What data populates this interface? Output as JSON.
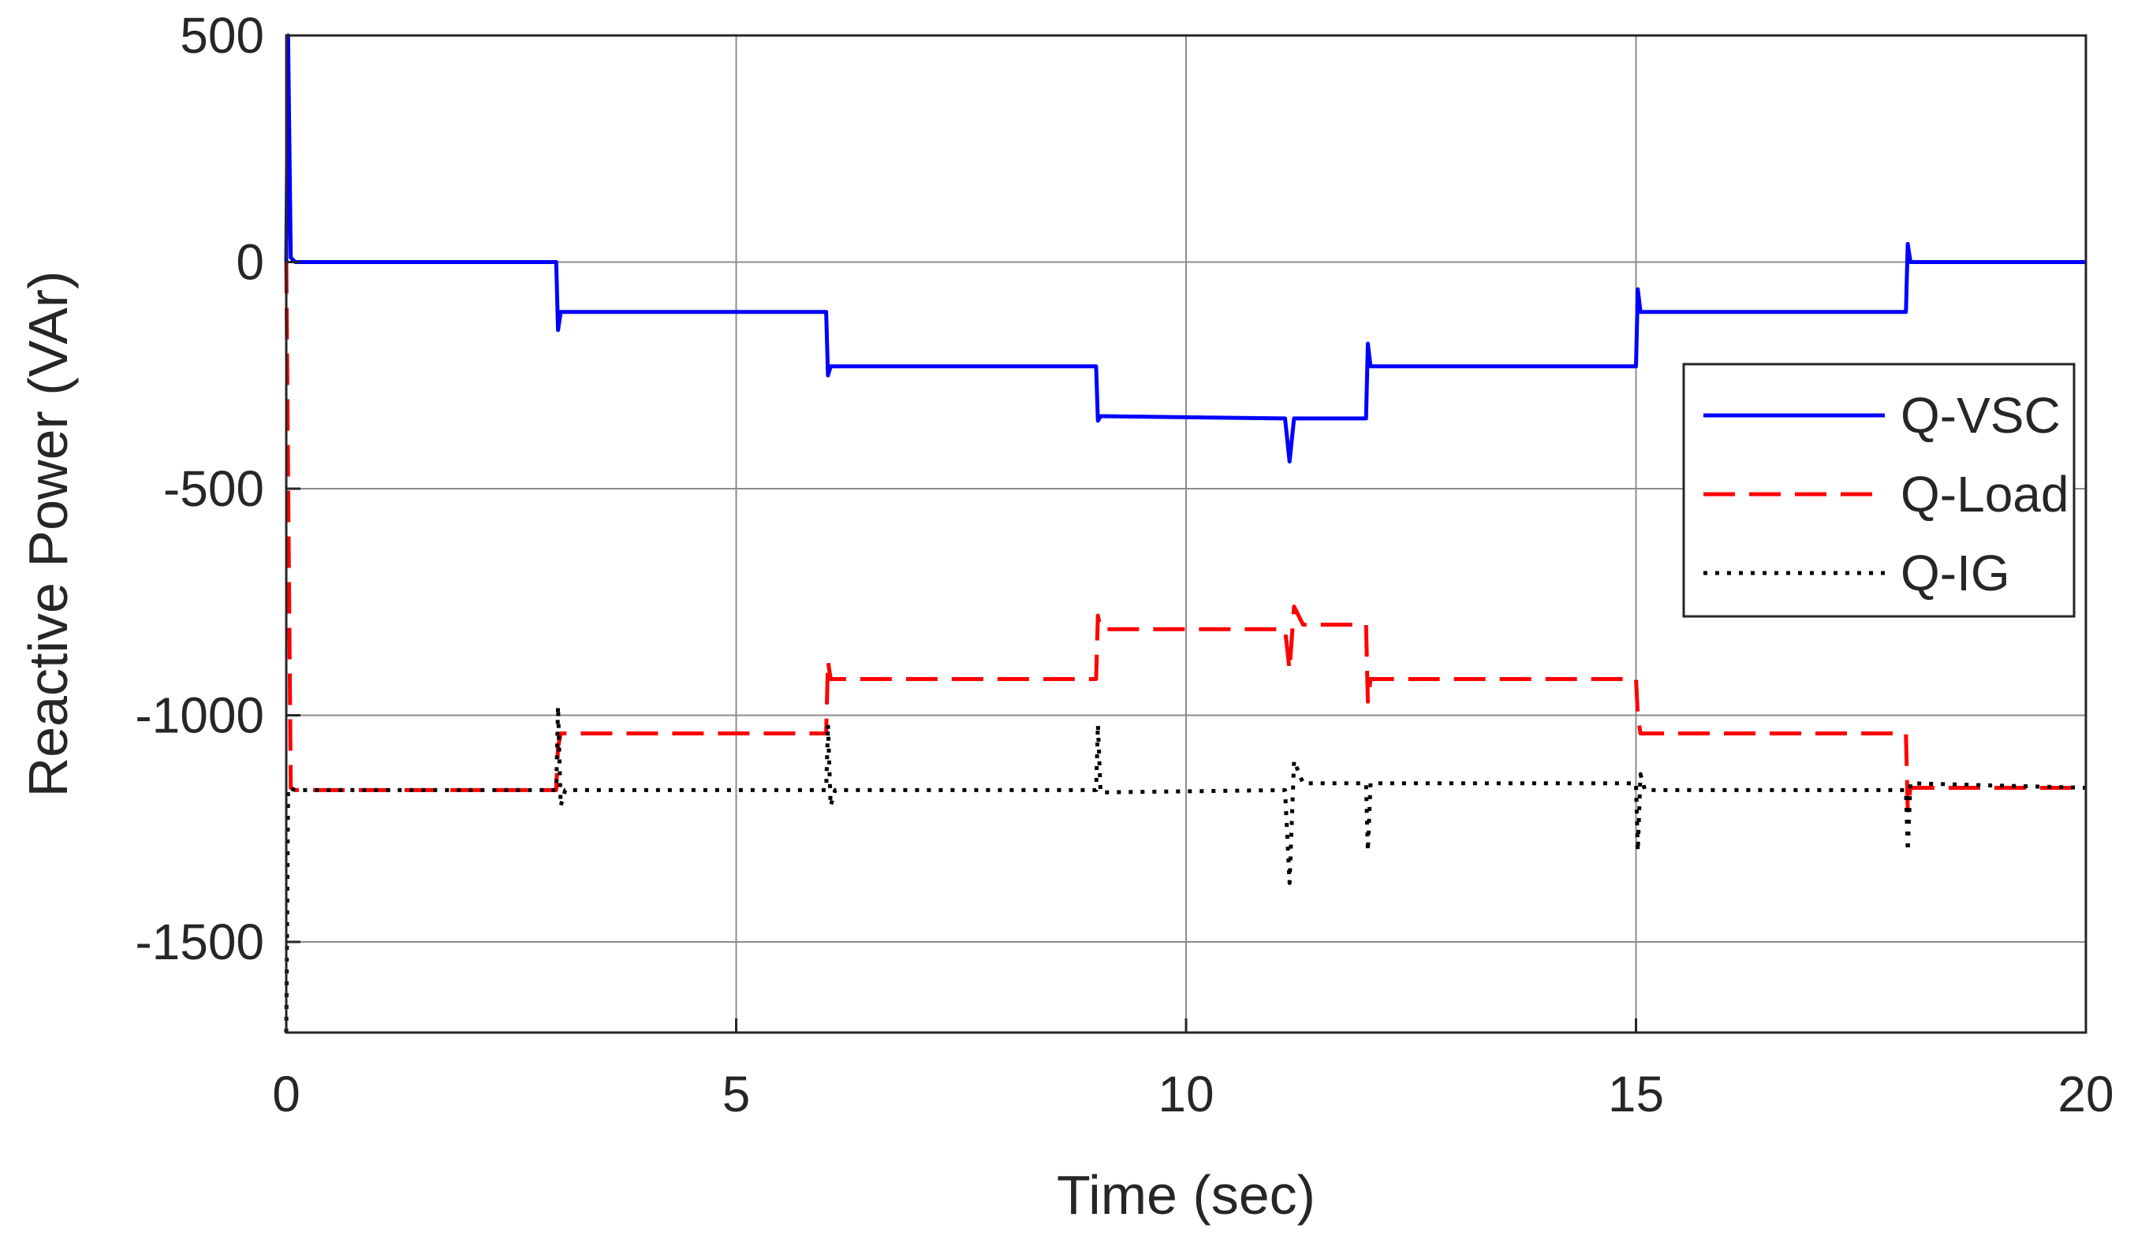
{
  "chart_data": {
    "type": "line",
    "title": "",
    "xlabel": "Time (sec)",
    "ylabel": "Reactive Power (VAr)",
    "xlim": [
      0,
      20
    ],
    "ylim": [
      -1700,
      500
    ],
    "xticks": [
      0,
      5,
      10,
      15,
      20
    ],
    "yticks": [
      500,
      0,
      -500,
      -1000,
      -1500
    ],
    "grid": true,
    "legend_position": "right",
    "series": [
      {
        "name": "Q-VSC",
        "color": "#0000ff",
        "style": "solid",
        "points": [
          [
            0,
            0
          ],
          [
            0.02,
            500
          ],
          [
            0.05,
            10
          ],
          [
            0.1,
            0
          ],
          [
            3,
            0
          ],
          [
            3.02,
            -150
          ],
          [
            3.05,
            -110
          ],
          [
            6,
            -110
          ],
          [
            6.02,
            -250
          ],
          [
            6.05,
            -230
          ],
          [
            9,
            -230
          ],
          [
            9.02,
            -350
          ],
          [
            9.05,
            -340
          ],
          [
            11.1,
            -345
          ],
          [
            11.15,
            -440
          ],
          [
            11.2,
            -345
          ],
          [
            12,
            -345
          ],
          [
            12.02,
            -180
          ],
          [
            12.05,
            -230
          ],
          [
            15,
            -230
          ],
          [
            15.02,
            -60
          ],
          [
            15.05,
            -110
          ],
          [
            18,
            -110
          ],
          [
            18.02,
            40
          ],
          [
            18.05,
            0
          ],
          [
            20,
            0
          ]
        ]
      },
      {
        "name": "Q-Load",
        "color": "#ff0000",
        "style": "dashed",
        "points": [
          [
            0,
            0
          ],
          [
            0.05,
            -1160
          ],
          [
            0.1,
            -1165
          ],
          [
            3,
            -1165
          ],
          [
            3.02,
            -1070
          ],
          [
            3.05,
            -1040
          ],
          [
            6,
            -1040
          ],
          [
            6.02,
            -880
          ],
          [
            6.05,
            -920
          ],
          [
            9,
            -920
          ],
          [
            9.02,
            -780
          ],
          [
            9.05,
            -810
          ],
          [
            11.1,
            -810
          ],
          [
            11.15,
            -900
          ],
          [
            11.2,
            -760
          ],
          [
            11.3,
            -800
          ],
          [
            12,
            -800
          ],
          [
            12.02,
            -970
          ],
          [
            12.05,
            -920
          ],
          [
            15,
            -920
          ],
          [
            15.02,
            -1000
          ],
          [
            15.05,
            -1040
          ],
          [
            18,
            -1040
          ],
          [
            18.02,
            -1210
          ],
          [
            18.05,
            -1160
          ],
          [
            20,
            -1160
          ]
        ]
      },
      {
        "name": "Q-IG",
        "color": "#000000",
        "style": "dotted",
        "points": [
          [
            0,
            -1700
          ],
          [
            0.02,
            -1160
          ],
          [
            0.1,
            -1165
          ],
          [
            3,
            -1165
          ],
          [
            3.02,
            -980
          ],
          [
            3.05,
            -1200
          ],
          [
            3.1,
            -1165
          ],
          [
            6,
            -1165
          ],
          [
            6.02,
            -1020
          ],
          [
            6.05,
            -1200
          ],
          [
            6.1,
            -1165
          ],
          [
            9,
            -1165
          ],
          [
            9.02,
            -1020
          ],
          [
            9.05,
            -1170
          ],
          [
            11.1,
            -1165
          ],
          [
            11.15,
            -1370
          ],
          [
            11.2,
            -1100
          ],
          [
            11.3,
            -1150
          ],
          [
            12,
            -1150
          ],
          [
            12.02,
            -1300
          ],
          [
            12.05,
            -1150
          ],
          [
            15,
            -1150
          ],
          [
            15.02,
            -1300
          ],
          [
            15.05,
            -1130
          ],
          [
            15.1,
            -1165
          ],
          [
            18,
            -1165
          ],
          [
            18.02,
            -1300
          ],
          [
            18.05,
            -1150
          ],
          [
            20,
            -1160
          ]
        ]
      }
    ]
  }
}
